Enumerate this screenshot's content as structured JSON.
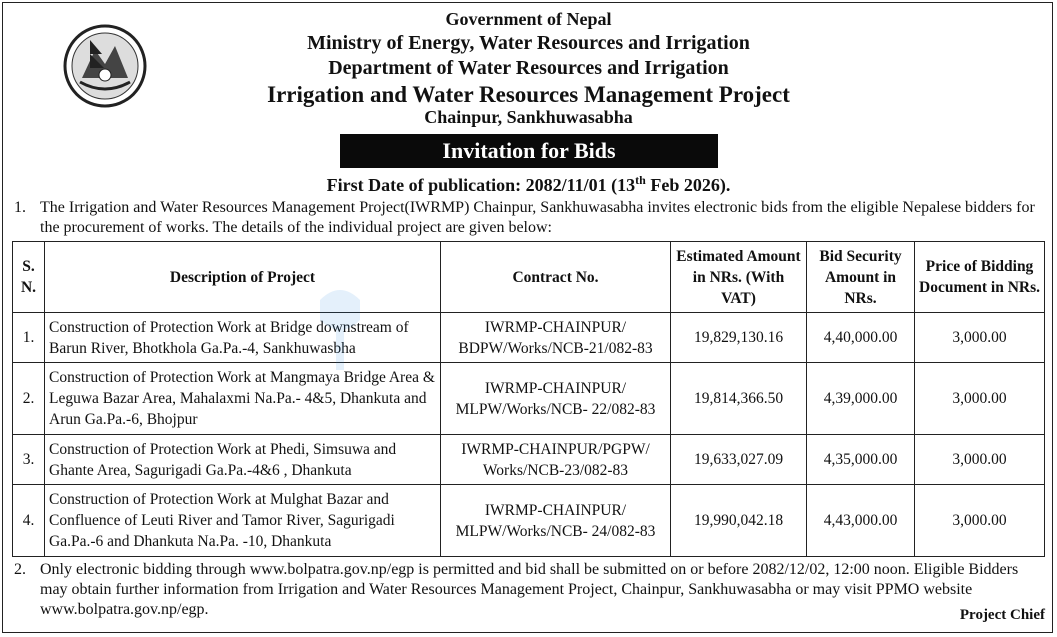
{
  "header": {
    "line1": "Government of Nepal",
    "line2": "Ministry of Energy, Water Resources and Irrigation",
    "line3": "Department of Water Resources and Irrigation",
    "line4": "Irrigation and Water Resources Management Project",
    "line5": "Chainpur, Sankhuwasabha"
  },
  "banner": "Invitation for Bids",
  "publication": {
    "prefix": "First Date of publication: 2082/11/01 (13",
    "sup": "th",
    "suffix": " Feb 2026)."
  },
  "para1": {
    "num": "1.",
    "text": "The Irrigation and Water Resources Management Project(IWRMP) Chainpur, Sankhuwasabha invites electronic bids from the eligible Nepalese bidders for the procurement of works. The details of the individual project are given below:"
  },
  "table": {
    "headers": {
      "sn": "S. N.",
      "desc": "Description of Project",
      "contract": "Contract No.",
      "amount": "Estimated Amount in NRs. (With VAT)",
      "security": "Bid Security Amount in NRs.",
      "price": "Price of Bidding Document in NRs."
    },
    "rows": [
      {
        "sn": "1.",
        "desc": "Construction of Protection Work at Bridge downstream of Barun River, Bhotkhola Ga.Pa.-4, Sankhuwasbha",
        "contract": "IWRMP-CHAINPUR/ BDPW/Works/NCB-21/082-83",
        "amount": "19,829,130.16",
        "security": "4,40,000.00",
        "price": "3,000.00"
      },
      {
        "sn": "2.",
        "desc": "Construction of Protection Work at Mangmaya Bridge Area & Leguwa Bazar Area, Mahalaxmi Na.Pa.- 4&5, Dhankuta and Arun Ga.Pa.-6, Bhojpur",
        "contract": "IWRMP-CHAINPUR/ MLPW/Works/NCB- 22/082-83",
        "amount": "19,814,366.50",
        "security": "4,39,000.00",
        "price": "3,000.00"
      },
      {
        "sn": "3.",
        "desc": "Construction of Protection Work at Phedi, Simsuwa and Ghante Area, Sagurigadi Ga.Pa.-4&6 , Dhankuta",
        "contract": "IWRMP-CHAINPUR/PGPW/ Works/NCB-23/082-83",
        "amount": "19,633,027.09",
        "security": "4,35,000.00",
        "price": "3,000.00"
      },
      {
        "sn": "4.",
        "desc": "Construction of Protection Work at Mulghat Bazar and Confluence of Leuti River and Tamor River, Sagurigadi Ga.Pa.-6 and Dhankuta Na.Pa. -10, Dhankuta",
        "contract": "IWRMP-CHAINPUR/ MLPW/Works/NCB- 24/082-83",
        "amount": "19,990,042.18",
        "security": "4,43,000.00",
        "price": "3,000.00"
      }
    ]
  },
  "para2": {
    "num": "2.",
    "text": "Only electronic bidding through www.bolpatra.gov.np/egp is permitted and bid shall be submitted on or before 2082/12/02, 12:00 noon. Eligible Bidders may obtain further information from Irrigation and Water Resources Management Project, Chainpur, Sankhuwasabha or may visit PPMO website www.bolpatra.gov.np/egp."
  },
  "signature": "Project Chief"
}
